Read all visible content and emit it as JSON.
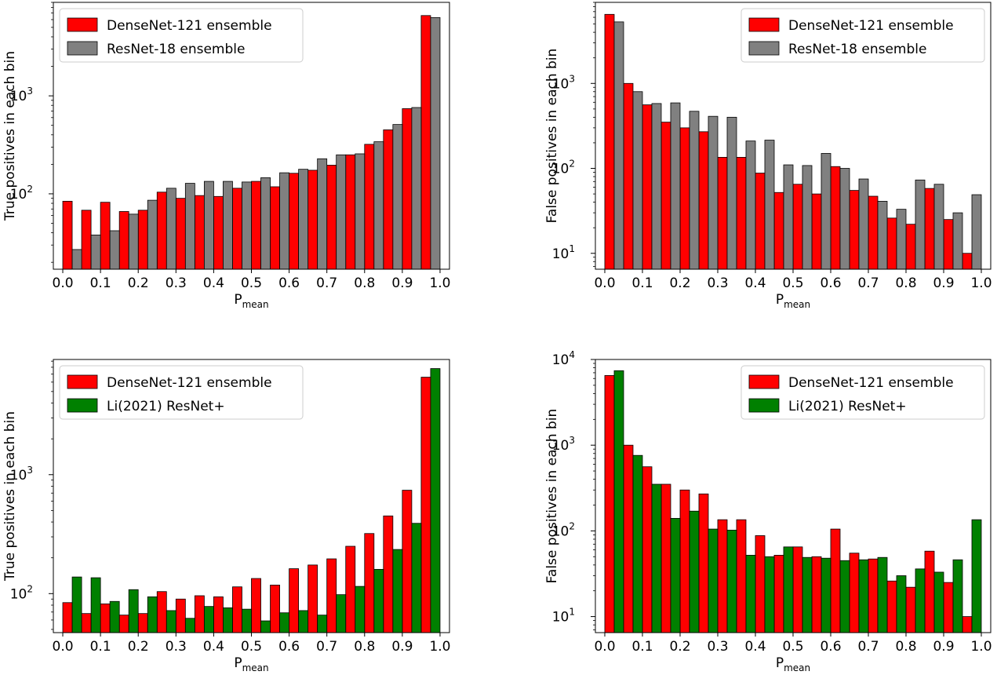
{
  "chart_data": [
    {
      "type": "bar",
      "xlabel_main": "P",
      "xlabel_sub": "mean",
      "ylabel": "True positives in each bin",
      "yscale": "log",
      "ylim": [
        17,
        9000
      ],
      "xlim": [
        -0.025,
        1.025
      ],
      "bin_width": 0.05,
      "x": [
        0.025,
        0.075,
        0.125,
        0.175,
        0.225,
        0.275,
        0.325,
        0.375,
        0.425,
        0.475,
        0.525,
        0.575,
        0.625,
        0.675,
        0.725,
        0.775,
        0.825,
        0.875,
        0.925,
        0.975
      ],
      "xticks": [
        "0.0",
        "0.1",
        "0.2",
        "0.3",
        "0.4",
        "0.5",
        "0.6",
        "0.7",
        "0.8",
        "0.9",
        "1.0"
      ],
      "yticks": [
        {
          "value": 100,
          "base": "10",
          "exp": "2"
        },
        {
          "value": 1000,
          "base": "10",
          "exp": "3"
        }
      ],
      "legend_position": "upper left",
      "series": [
        {
          "name": "DenseNet-121 ensemble",
          "color": "#ff0000",
          "values": [
            84,
            68,
            82,
            66,
            68,
            104,
            90,
            96,
            94,
            114,
            134,
            118,
            162,
            174,
            196,
            250,
            320,
            450,
            740,
            6600
          ]
        },
        {
          "name": "ResNet-18 ensemble",
          "color": "#808080",
          "values": [
            27,
            38,
            42,
            62,
            86,
            114,
            128,
            134,
            134,
            132,
            146,
            164,
            178,
            228,
            250,
            256,
            340,
            510,
            760,
            6300
          ]
        }
      ]
    },
    {
      "type": "bar",
      "xlabel_main": "P",
      "xlabel_sub": "mean",
      "ylabel": "False positives in each bin",
      "yscale": "log",
      "ylim": [
        6.5,
        9000
      ],
      "xlim": [
        -0.025,
        1.025
      ],
      "bin_width": 0.05,
      "x": [
        0.025,
        0.075,
        0.125,
        0.175,
        0.225,
        0.275,
        0.325,
        0.375,
        0.425,
        0.475,
        0.525,
        0.575,
        0.625,
        0.675,
        0.725,
        0.775,
        0.825,
        0.875,
        0.925,
        0.975
      ],
      "xticks": [
        "0.0",
        "0.1",
        "0.2",
        "0.3",
        "0.4",
        "0.5",
        "0.6",
        "0.7",
        "0.8",
        "0.9",
        "1.0"
      ],
      "yticks": [
        {
          "value": 10,
          "base": "10",
          "exp": "1"
        },
        {
          "value": 100,
          "base": "10",
          "exp": "2"
        },
        {
          "value": 1000,
          "base": "10",
          "exp": "3"
        }
      ],
      "legend_position": "upper right",
      "series": [
        {
          "name": "DenseNet-121 ensemble",
          "color": "#ff0000",
          "values": [
            6500,
            1000,
            560,
            350,
            300,
            270,
            135,
            135,
            88,
            52,
            65,
            50,
            105,
            55,
            47,
            26,
            22,
            58,
            25,
            10
          ]
        },
        {
          "name": "ResNet-18 ensemble",
          "color": "#808080",
          "values": [
            5300,
            800,
            580,
            590,
            470,
            410,
            400,
            210,
            215,
            110,
            108,
            150,
            100,
            75,
            41,
            33,
            73,
            65,
            30,
            49
          ]
        }
      ]
    },
    {
      "type": "bar",
      "xlabel_main": "P",
      "xlabel_sub": "mean",
      "ylabel": "True positives in each bin",
      "yscale": "log",
      "ylim": [
        47,
        9300
      ],
      "xlim": [
        -0.025,
        1.025
      ],
      "bin_width": 0.05,
      "x": [
        0.025,
        0.075,
        0.125,
        0.175,
        0.225,
        0.275,
        0.325,
        0.375,
        0.425,
        0.475,
        0.525,
        0.575,
        0.625,
        0.675,
        0.725,
        0.775,
        0.825,
        0.875,
        0.925,
        0.975
      ],
      "xticks": [
        "0.0",
        "0.1",
        "0.2",
        "0.3",
        "0.4",
        "0.5",
        "0.6",
        "0.7",
        "0.8",
        "0.9",
        "1.0"
      ],
      "yticks": [
        {
          "value": 100,
          "base": "10",
          "exp": "2"
        },
        {
          "value": 1000,
          "base": "10",
          "exp": "3"
        }
      ],
      "legend_position": "upper left",
      "series": [
        {
          "name": "DenseNet-121 ensemble",
          "color": "#ff0000",
          "values": [
            84,
            68,
            82,
            66,
            68,
            104,
            90,
            96,
            94,
            114,
            134,
            118,
            162,
            174,
            196,
            250,
            320,
            450,
            740,
            6600
          ]
        },
        {
          "name": "Li(2021) ResNet+",
          "color": "#008000",
          "values": [
            138,
            136,
            86,
            108,
            94,
            72,
            62,
            78,
            76,
            74,
            59,
            69,
            72,
            66,
            98,
            115,
            160,
            235,
            390,
            7800
          ]
        }
      ]
    },
    {
      "type": "bar",
      "xlabel_main": "P",
      "xlabel_sub": "mean",
      "ylabel": "False positives in each bin",
      "yscale": "log",
      "ylim": [
        6.5,
        10000
      ],
      "xlim": [
        -0.025,
        1.025
      ],
      "bin_width": 0.05,
      "x": [
        0.025,
        0.075,
        0.125,
        0.175,
        0.225,
        0.275,
        0.325,
        0.375,
        0.425,
        0.475,
        0.525,
        0.575,
        0.625,
        0.675,
        0.725,
        0.775,
        0.825,
        0.875,
        0.925,
        0.975
      ],
      "xticks": [
        "0.0",
        "0.1",
        "0.2",
        "0.3",
        "0.4",
        "0.5",
        "0.6",
        "0.7",
        "0.8",
        "0.9",
        "1.0"
      ],
      "yticks": [
        {
          "value": 10,
          "base": "10",
          "exp": "1"
        },
        {
          "value": 100,
          "base": "10",
          "exp": "2"
        },
        {
          "value": 1000,
          "base": "10",
          "exp": "3"
        },
        {
          "value": 10000,
          "base": "10",
          "exp": "4"
        }
      ],
      "legend_position": "upper right",
      "series": [
        {
          "name": "DenseNet-121 ensemble",
          "color": "#ff0000",
          "values": [
            6500,
            1000,
            560,
            350,
            300,
            270,
            135,
            135,
            88,
            52,
            65,
            50,
            105,
            55,
            47,
            26,
            22,
            58,
            25,
            10
          ]
        },
        {
          "name": "Li(2021) ResNet+",
          "color": "#008000",
          "values": [
            7400,
            760,
            350,
            140,
            170,
            105,
            102,
            52,
            50,
            65,
            49,
            48,
            45,
            46,
            49,
            30,
            36,
            33,
            46,
            135
          ]
        }
      ]
    }
  ]
}
